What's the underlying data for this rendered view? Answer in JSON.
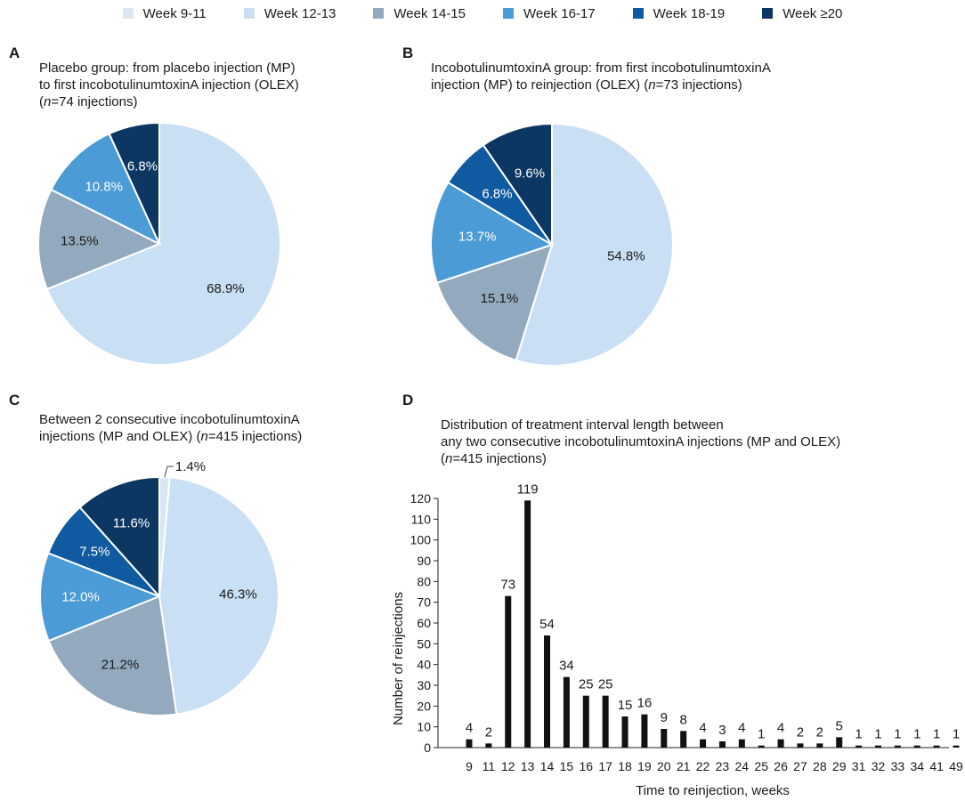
{
  "legend": [
    {
      "label": "Week 9-11",
      "color": "#dbe6f3"
    },
    {
      "label": "Week 12-13",
      "color": "#c9dff4"
    },
    {
      "label": "Week 14-15",
      "color": "#93a9bd"
    },
    {
      "label": "Week 16-17",
      "color": "#4a9bd6"
    },
    {
      "label": "Week 18-19",
      "color": "#0f5aa0"
    },
    {
      "label": "Week ≥20",
      "color": "#0c3762"
    }
  ],
  "panels": {
    "a": {
      "letter": "A",
      "title_lines": [
        "Placebo group: from placebo injection (MP)",
        "to first incobotulinumtoxinA injection (OLEX)"
      ],
      "n_prefix": "(",
      "n_italic": "n",
      "n_suffix": "=74 injections)"
    },
    "b": {
      "letter": "B",
      "title_lines": [
        "IncobotulinumtoxinA group: from first incobotulinumtoxinA",
        "injection (MP) to reinjection (OLEX) ("
      ],
      "title_n_italic": "n",
      "title_n_suffix": "=73 injections)"
    },
    "c": {
      "letter": "C",
      "title_lines": [
        "Between 2 consecutive incobotulinumtoxinA",
        "injections (MP and OLEX) ("
      ],
      "title_n_italic": "n",
      "title_n_suffix": "=415 injections)"
    },
    "d": {
      "letter": "D",
      "title_lines": [
        "Distribution of treatment interval length between",
        "any two consecutive incobotulinumtoxinA injections (MP and OLEX)"
      ],
      "n_prefix": "(",
      "n_italic": "n",
      "n_suffix": "=415 injections)"
    }
  },
  "chart_data": [
    {
      "type": "pie",
      "id": "A",
      "slices": [
        {
          "category": "Week 12-13",
          "value": 68.9,
          "label": "68.9%"
        },
        {
          "category": "Week 14-15",
          "value": 13.5,
          "label": "13.5%"
        },
        {
          "category": "Week 16-17",
          "value": 10.8,
          "label": "10.8%"
        },
        {
          "category": "Week ≥20",
          "value": 6.8,
          "label": "6.8%"
        }
      ]
    },
    {
      "type": "pie",
      "id": "B",
      "slices": [
        {
          "category": "Week 12-13",
          "value": 54.8,
          "label": "54.8%"
        },
        {
          "category": "Week 14-15",
          "value": 15.1,
          "label": "15.1%"
        },
        {
          "category": "Week 16-17",
          "value": 13.7,
          "label": "13.7%"
        },
        {
          "category": "Week 18-19",
          "value": 6.8,
          "label": "6.8%"
        },
        {
          "category": "Week ≥20",
          "value": 9.6,
          "label": "9.6%"
        }
      ]
    },
    {
      "type": "pie",
      "id": "C",
      "slices": [
        {
          "category": "Week 9-11",
          "value": 1.4,
          "label": "1.4%"
        },
        {
          "category": "Week 12-13",
          "value": 46.3,
          "label": "46.3%"
        },
        {
          "category": "Week 14-15",
          "value": 21.2,
          "label": "21.2%"
        },
        {
          "category": "Week 16-17",
          "value": 12.0,
          "label": "12.0%"
        },
        {
          "category": "Week 18-19",
          "value": 7.5,
          "label": "7.5%"
        },
        {
          "category": "Week ≥20",
          "value": 11.6,
          "label": "11.6%"
        }
      ]
    },
    {
      "type": "bar",
      "id": "D",
      "categories": [
        "9",
        "11",
        "12",
        "13",
        "14",
        "15",
        "16",
        "17",
        "18",
        "19",
        "20",
        "21",
        "22",
        "23",
        "24",
        "25",
        "26",
        "27",
        "28",
        "29",
        "31",
        "32",
        "33",
        "34",
        "41",
        "49"
      ],
      "values": [
        4,
        2,
        73,
        119,
        54,
        34,
        25,
        25,
        15,
        16,
        9,
        8,
        4,
        3,
        4,
        1,
        4,
        2,
        2,
        5,
        1,
        1,
        1,
        1,
        1,
        1
      ],
      "xlabel": "Time to reinjection, weeks",
      "ylabel": "Number of reinjections",
      "ylim": [
        0,
        120
      ],
      "yticks": [
        0,
        10,
        20,
        30,
        40,
        50,
        60,
        70,
        80,
        90,
        100,
        110,
        120
      ]
    }
  ]
}
